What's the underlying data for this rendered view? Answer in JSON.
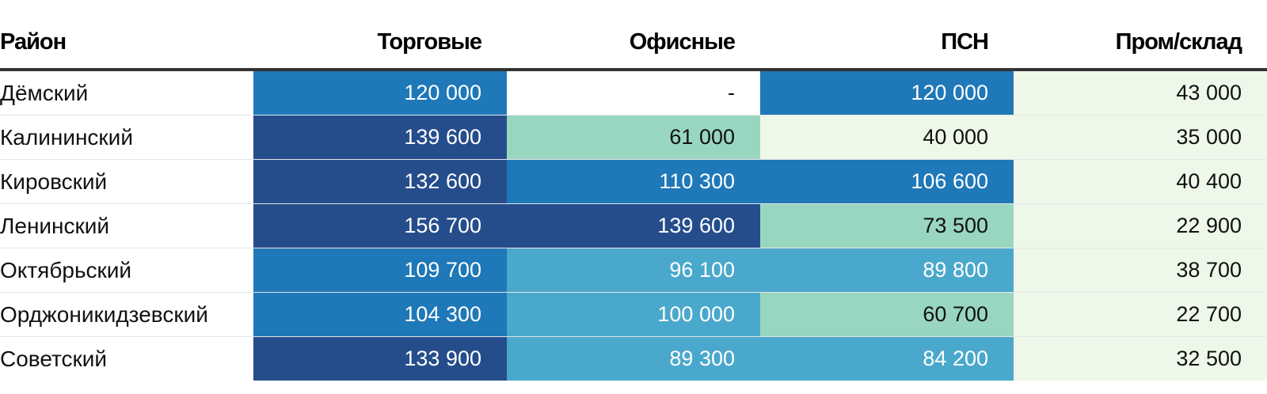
{
  "chart_data": {
    "type": "table",
    "columns": [
      "Район",
      "Торговые",
      "Офисные",
      "ПСН",
      "Пром/склад"
    ],
    "rows": [
      {
        "district": "Дёмский",
        "values": [
          "120 000",
          "-",
          "120 000",
          "43 000"
        ]
      },
      {
        "district": "Калининский",
        "values": [
          "139 600",
          "61 000",
          "40 000",
          "35 000"
        ]
      },
      {
        "district": "Кировский",
        "values": [
          "132 600",
          "110 300",
          "106 600",
          "40 400"
        ]
      },
      {
        "district": "Ленинский",
        "values": [
          "156 700",
          "139 600",
          "73 500",
          "22 900"
        ]
      },
      {
        "district": "Октябрьский",
        "values": [
          "109 700",
          "96 100",
          "89 800",
          "38 700"
        ]
      },
      {
        "district": "Орджоникидзевский",
        "values": [
          "104 300",
          "100 000",
          "60 700",
          "22 700"
        ]
      },
      {
        "district": "Советский",
        "values": [
          "133 900",
          "89 300",
          "84 200",
          "32 500"
        ]
      }
    ],
    "color_scale": [
      {
        "max": 0,
        "color": "#ffffff",
        "text": "#111111"
      },
      {
        "max": 50000,
        "color": "#edf8e9",
        "text": "#111111"
      },
      {
        "max": 80000,
        "color": "#98d6c0",
        "text": "#111111"
      },
      {
        "max": 100000,
        "color": "#4aa8cc",
        "text": "#ffffff"
      },
      {
        "max": 130000,
        "color": "#1f78b8",
        "text": "#ffffff"
      },
      {
        "max": 1000000,
        "color": "#254d8c",
        "text": "#ffffff"
      }
    ]
  }
}
